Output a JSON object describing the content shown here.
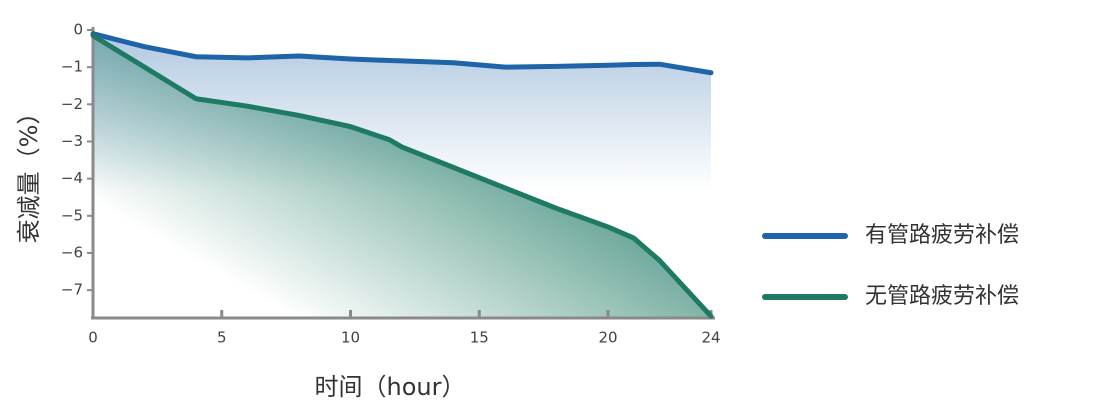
{
  "chart_data": {
    "type": "line",
    "x_label": "时间（hour）",
    "y_label": "衰减量（%）",
    "x": [
      0,
      2,
      4,
      6,
      8,
      10,
      11.5,
      12,
      14,
      16,
      18,
      20,
      21,
      22,
      24
    ],
    "series": [
      {
        "name": "有管路疲劳补偿",
        "color": "#1f63a8",
        "values": [
          -0.1,
          -0.45,
          -0.72,
          -0.75,
          -0.7,
          -0.78,
          -0.82,
          -0.83,
          -0.88,
          -1.0,
          -0.98,
          -0.95,
          -0.93,
          -0.92,
          -1.15
        ]
      },
      {
        "name": "无管路疲劳补偿",
        "color": "#1f7a64",
        "values": [
          -0.15,
          -1.0,
          -1.85,
          -2.05,
          -2.3,
          -2.6,
          -2.95,
          -3.15,
          -3.7,
          -4.25,
          -4.8,
          -5.3,
          -5.6,
          -6.2,
          -7.7
        ]
      }
    ],
    "xlim": [
      0,
      24
    ],
    "xticks": [
      0,
      5,
      10,
      15,
      20,
      24
    ],
    "ylim": [
      -7.75,
      0
    ],
    "yticks": [
      0,
      {
        "value": -1,
        "label": "−1"
      },
      {
        "value": -2,
        "label": "−2"
      },
      {
        "value": -3,
        "label": "−3"
      },
      {
        "value": -4,
        "label": "−4"
      },
      {
        "value": -5,
        "label": "−5"
      },
      {
        "value": -6,
        "label": "−6"
      },
      {
        "value": -7,
        "label": "−7"
      }
    ],
    "legend": "right"
  }
}
